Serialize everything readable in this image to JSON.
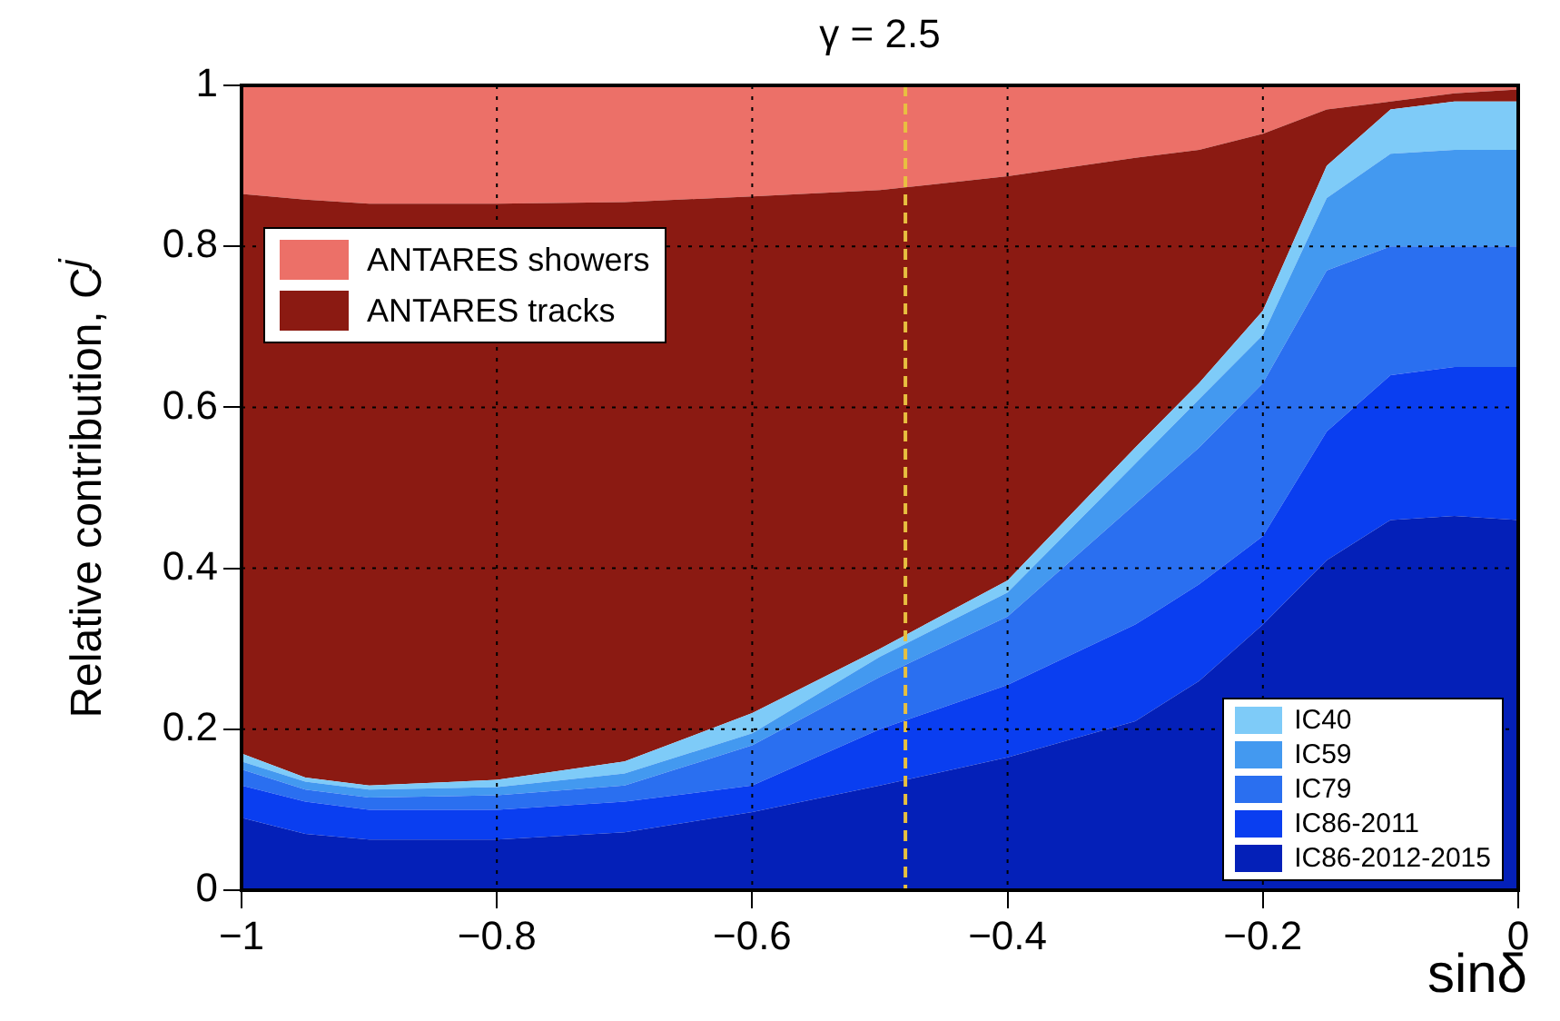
{
  "chart_data": {
    "type": "area",
    "title": "γ = 2.5",
    "xlabel": "sinδ",
    "ylabel": "Relative contribution, C$^{j}$",
    "stacked": true,
    "legend": "bottom right",
    "x": [
      -1,
      -0.95,
      -0.9,
      -0.8,
      -0.7,
      -0.6,
      -0.5,
      -0.4,
      -0.3,
      -0.25,
      -0.2,
      -0.15,
      -0.1,
      -0.05,
      0
    ],
    "series": [
      {
        "name": "IC86-2012-2015",
        "color": "#0420b8",
        "values": [
          0.09,
          0.07,
          0.063,
          0.063,
          0.072,
          0.097,
          0.13,
          0.165,
          0.21,
          0.26,
          0.33,
          0.41,
          0.46,
          0.465,
          0.46
        ]
      },
      {
        "name": "IC86-2011",
        "color": "#0a3ef0",
        "values": [
          0.04,
          0.04,
          0.037,
          0.037,
          0.038,
          0.033,
          0.07,
          0.09,
          0.12,
          0.12,
          0.11,
          0.16,
          0.18,
          0.185,
          0.19
        ]
      },
      {
        "name": "IC79",
        "color": "#2a6ff0",
        "values": [
          0.02,
          0.015,
          0.015,
          0.018,
          0.02,
          0.05,
          0.065,
          0.085,
          0.15,
          0.17,
          0.19,
          0.2,
          0.16,
          0.15,
          0.15
        ]
      },
      {
        "name": "IC59",
        "color": "#4399f0",
        "values": [
          0.01,
          0.01,
          0.01,
          0.01,
          0.015,
          0.015,
          0.025,
          0.03,
          0.05,
          0.06,
          0.06,
          0.09,
          0.115,
          0.12,
          0.12
        ]
      },
      {
        "name": "IC40",
        "color": "#7ecbf8",
        "values": [
          0.01,
          0.005,
          0.005,
          0.009,
          0.015,
          0.025,
          0.01,
          0.015,
          0.02,
          0.02,
          0.03,
          0.04,
          0.055,
          0.06,
          0.06
        ]
      },
      {
        "name": "ANTARES tracks",
        "color": "#8b1a12",
        "values": [
          0.695,
          0.718,
          0.723,
          0.716,
          0.695,
          0.642,
          0.57,
          0.502,
          0.36,
          0.29,
          0.22,
          0.07,
          0.01,
          0.01,
          0.015
        ]
      },
      {
        "name": "ANTARES showers",
        "color": "#ec7068",
        "values": [
          0.135,
          0.142,
          0.147,
          0.147,
          0.145,
          0.138,
          0.13,
          0.113,
          0.09,
          0.08,
          0.06,
          0.03,
          0.02,
          0.01,
          0.005
        ]
      }
    ],
    "xlim": [
      -1,
      0
    ],
    "xticks": [
      {
        "value": -1,
        "label": "−1"
      },
      {
        "value": -0.8,
        "label": "−0.8"
      },
      {
        "value": -0.6,
        "label": "−0.6"
      },
      {
        "value": -0.4,
        "label": "−0.4"
      },
      {
        "value": -0.2,
        "label": "−0.2"
      },
      0
    ],
    "ylim": [
      0,
      1
    ],
    "yticks": [
      0,
      0.2,
      0.4,
      0.6,
      0.8,
      1
    ],
    "grid": true,
    "ref_lines": [
      {
        "axis": "x",
        "value": -0.48,
        "color": "#e8c040",
        "line_style": "dashed"
      }
    ]
  }
}
